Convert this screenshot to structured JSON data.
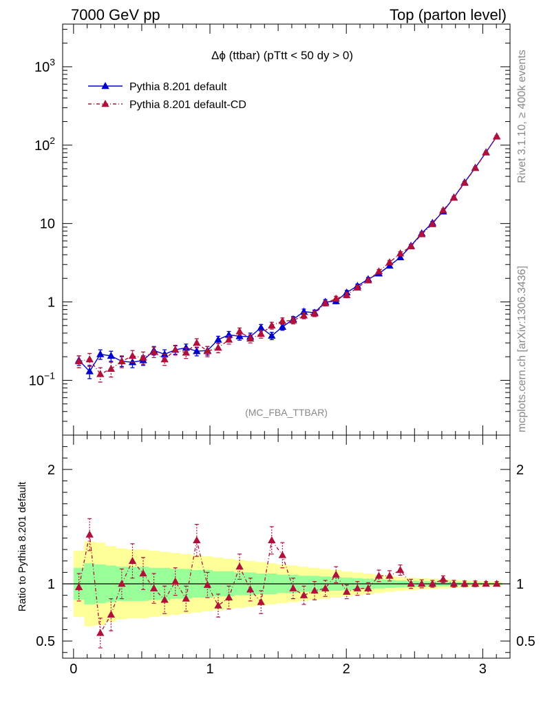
{
  "header": {
    "left": "7000 GeV pp",
    "right": "Top (parton level)"
  },
  "side_text": {
    "rivet": "Rivet 3.1.10, ≥ 400k events",
    "mcplots": "mcplots.cern.ch [arXiv:1306.3436]"
  },
  "colors": {
    "series1": "#0000d0",
    "series2": "#b0103a",
    "band_yellow": "#ffff99",
    "band_green": "#99ff99"
  },
  "chart_data": [
    {
      "type": "line",
      "title": "Δϕ (ttbar) (pTtt < 50 dy > 0)",
      "watermark": "(MC_FBA_TTBAR)",
      "yscale": "log",
      "ylim": [
        0.02,
        3500
      ],
      "xlim": [
        -0.08,
        3.2
      ],
      "yticks": [
        {
          "v": 0.1,
          "base": "10",
          "exp": "−1"
        },
        {
          "v": 1,
          "base": "1",
          "exp": ""
        },
        {
          "v": 10,
          "base": "10",
          "exp": ""
        },
        {
          "v": 100,
          "base": "10",
          "exp": "2"
        },
        {
          "v": 1000,
          "base": "10",
          "exp": "3"
        }
      ],
      "legend_position": "top-left",
      "x": [
        0.0393,
        0.1178,
        0.1963,
        0.2749,
        0.3534,
        0.432,
        0.5105,
        0.589,
        0.6676,
        0.7461,
        0.8247,
        0.9032,
        0.9817,
        1.0603,
        1.1388,
        1.2174,
        1.2959,
        1.3744,
        1.453,
        1.5315,
        1.6101,
        1.6886,
        1.7671,
        1.8457,
        1.9242,
        2.0028,
        2.0813,
        2.1598,
        2.2384,
        2.3169,
        2.3955,
        2.474,
        2.5525,
        2.6311,
        2.7096,
        2.7882,
        2.8667,
        2.9452,
        3.0238,
        3.1023
      ],
      "series": [
        {
          "name": "Pythia 8.201 default",
          "marker": "triangle",
          "line": "solid",
          "values": [
            0.18,
            0.13,
            0.215,
            0.205,
            0.175,
            0.17,
            0.18,
            0.24,
            0.215,
            0.245,
            0.26,
            0.235,
            0.24,
            0.33,
            0.38,
            0.365,
            0.36,
            0.47,
            0.37,
            0.48,
            0.6,
            0.75,
            0.73,
            1.0,
            1.02,
            1.32,
            1.6,
            1.95,
            2.3,
            2.9,
            3.7,
            5.2,
            7.5,
            10.2,
            14.2,
            21.5,
            33.5,
            51.5,
            81.0,
            129.0
          ],
          "err": [
            0.025,
            0.025,
            0.03,
            0.03,
            0.025,
            0.025,
            0.025,
            0.03,
            0.03,
            0.03,
            0.03,
            0.03,
            0.03,
            0.035,
            0.04,
            0.04,
            0.04,
            0.045,
            0.04,
            0.045,
            0.05,
            0.06,
            0.06,
            0.07,
            0.07,
            0.08,
            0.09,
            0.1,
            0.12,
            0.14,
            0.17,
            0.22,
            0.3,
            0.4,
            0.5,
            0.7,
            1.0,
            1.4,
            2.0,
            3.0
          ]
        },
        {
          "name": "Pythia 8.201 default-CD",
          "marker": "triangle",
          "line": "dash-dot",
          "values": [
            0.175,
            0.185,
            0.12,
            0.14,
            0.175,
            0.205,
            0.195,
            0.23,
            0.185,
            0.245,
            0.225,
            0.3,
            0.235,
            0.26,
            0.33,
            0.42,
            0.34,
            0.39,
            0.5,
            0.57,
            0.58,
            0.67,
            0.71,
            0.96,
            1.1,
            1.22,
            1.52,
            1.88,
            2.45,
            3.2,
            4.15,
            5.1,
            7.3,
            9.8,
            14.8,
            21.3,
            33.0,
            51.0,
            80.5,
            128.5
          ],
          "err": [
            0.03,
            0.035,
            0.025,
            0.03,
            0.03,
            0.035,
            0.035,
            0.035,
            0.03,
            0.035,
            0.035,
            0.04,
            0.035,
            0.035,
            0.04,
            0.045,
            0.04,
            0.045,
            0.05,
            0.055,
            0.055,
            0.06,
            0.06,
            0.07,
            0.08,
            0.09,
            0.1,
            0.11,
            0.14,
            0.17,
            0.21,
            0.24,
            0.32,
            0.4,
            0.55,
            0.7,
            1.0,
            1.4,
            2.0,
            3.0
          ]
        }
      ]
    },
    {
      "type": "line",
      "ylabel": "Ratio to Pythia 8.201 default",
      "ylim": [
        0.35,
        2.3
      ],
      "xlim": [
        -0.08,
        3.2
      ],
      "yticks": [
        0.5,
        1,
        2
      ],
      "xticks": [
        0,
        1,
        2,
        3
      ],
      "reference_line": 1,
      "band_yellow_halfwidth": [
        0.29,
        0.37,
        0.36,
        0.33,
        0.31,
        0.3,
        0.3,
        0.29,
        0.28,
        0.27,
        0.26,
        0.25,
        0.24,
        0.23,
        0.22,
        0.21,
        0.2,
        0.19,
        0.18,
        0.17,
        0.16,
        0.15,
        0.14,
        0.13,
        0.12,
        0.11,
        0.1,
        0.09,
        0.08,
        0.07,
        0.06,
        0.055,
        0.05,
        0.045,
        0.04,
        0.035,
        0.03,
        0.025,
        0.02,
        0.02
      ],
      "band_green_halfwidth": [
        0.14,
        0.18,
        0.17,
        0.16,
        0.15,
        0.15,
        0.15,
        0.14,
        0.14,
        0.13,
        0.13,
        0.12,
        0.12,
        0.11,
        0.11,
        0.1,
        0.1,
        0.09,
        0.09,
        0.08,
        0.08,
        0.07,
        0.07,
        0.065,
        0.06,
        0.055,
        0.05,
        0.045,
        0.04,
        0.035,
        0.03,
        0.028,
        0.025,
        0.022,
        0.02,
        0.018,
        0.015,
        0.013,
        0.01,
        0.01
      ],
      "ratio_values": [
        0.97,
        1.43,
        0.57,
        0.73,
        1.0,
        1.2,
        1.09,
        0.96,
        0.86,
        1.02,
        0.87,
        1.38,
        0.99,
        0.81,
        0.88,
        1.15,
        0.95,
        0.84,
        1.38,
        1.25,
        0.96,
        0.9,
        0.94,
        0.96,
        1.08,
        0.93,
        0.96,
        0.96,
        1.07,
        1.07,
        1.12,
        1.0,
        1.0,
        1.0,
        1.04,
        1.0,
        1.0,
        1.0,
        1.0,
        1.0
      ],
      "ratio_err": [
        0.12,
        0.14,
        0.13,
        0.14,
        0.13,
        0.15,
        0.14,
        0.13,
        0.12,
        0.12,
        0.11,
        0.14,
        0.11,
        0.1,
        0.1,
        0.11,
        0.1,
        0.1,
        0.12,
        0.11,
        0.09,
        0.08,
        0.08,
        0.07,
        0.07,
        0.06,
        0.06,
        0.05,
        0.05,
        0.045,
        0.045,
        0.04,
        0.035,
        0.03,
        0.03,
        0.03,
        0.025,
        0.025,
        0.02,
        0.02
      ]
    }
  ]
}
